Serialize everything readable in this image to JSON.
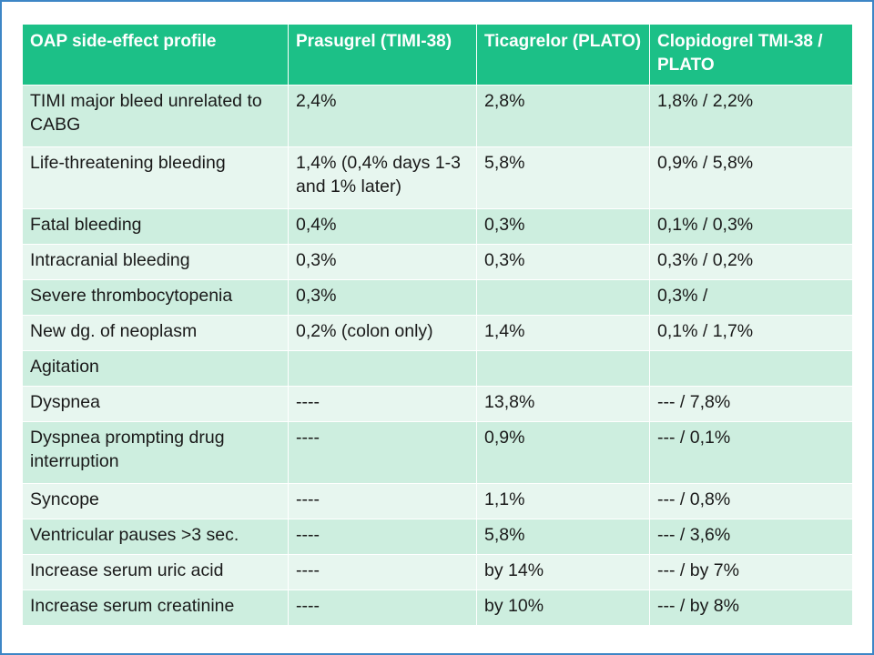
{
  "table": {
    "headers": [
      "OAP side-effect profile",
      "Prasugrel (TIMI-38)",
      "Ticagrelor (PLATO)",
      "Clopidogrel TMI-38 / PLATO"
    ],
    "rows": [
      [
        "TIMI major bleed unrelated to CABG",
        "2,4%",
        "2,8%",
        "1,8% / 2,2%"
      ],
      [
        "Life-threatening bleeding",
        "1,4% (0,4% days 1-3 and 1% later)",
        "5,8%",
        "0,9% / 5,8%"
      ],
      [
        "Fatal bleeding",
        "0,4%",
        "0,3%",
        "0,1% / 0,3%"
      ],
      [
        "Intracranial bleeding",
        "0,3%",
        "0,3%",
        "0,3% / 0,2%"
      ],
      [
        "Severe thrombocytopenia",
        "0,3%",
        "",
        "0,3% /"
      ],
      [
        "New dg. of neoplasm",
        "0,2% (colon only)",
        "1,4%",
        "0,1% / 1,7%"
      ],
      [
        "Agitation",
        "",
        "",
        ""
      ],
      [
        "Dyspnea",
        "----",
        "13,8%",
        "--- / 7,8%"
      ],
      [
        "Dyspnea prompting drug interruption",
        "----",
        "0,9%",
        "--- / 0,1%"
      ],
      [
        "Syncope",
        "----",
        "1,1%",
        "--- / 0,8%"
      ],
      [
        "Ventricular pauses >3 sec.",
        "----",
        "5,8%",
        "--- / 3,6%"
      ],
      [
        "Increase serum uric acid",
        "----",
        "by 14%",
        "--- / by 7%"
      ],
      [
        "Increase serum creatinine",
        "----",
        "by 10%",
        "--- / by 8%"
      ]
    ]
  },
  "colors": {
    "header_bg": "#1cc087",
    "row_odd": "#cdeedf",
    "row_even": "#e7f6ef",
    "frame": "#3d86c6"
  }
}
